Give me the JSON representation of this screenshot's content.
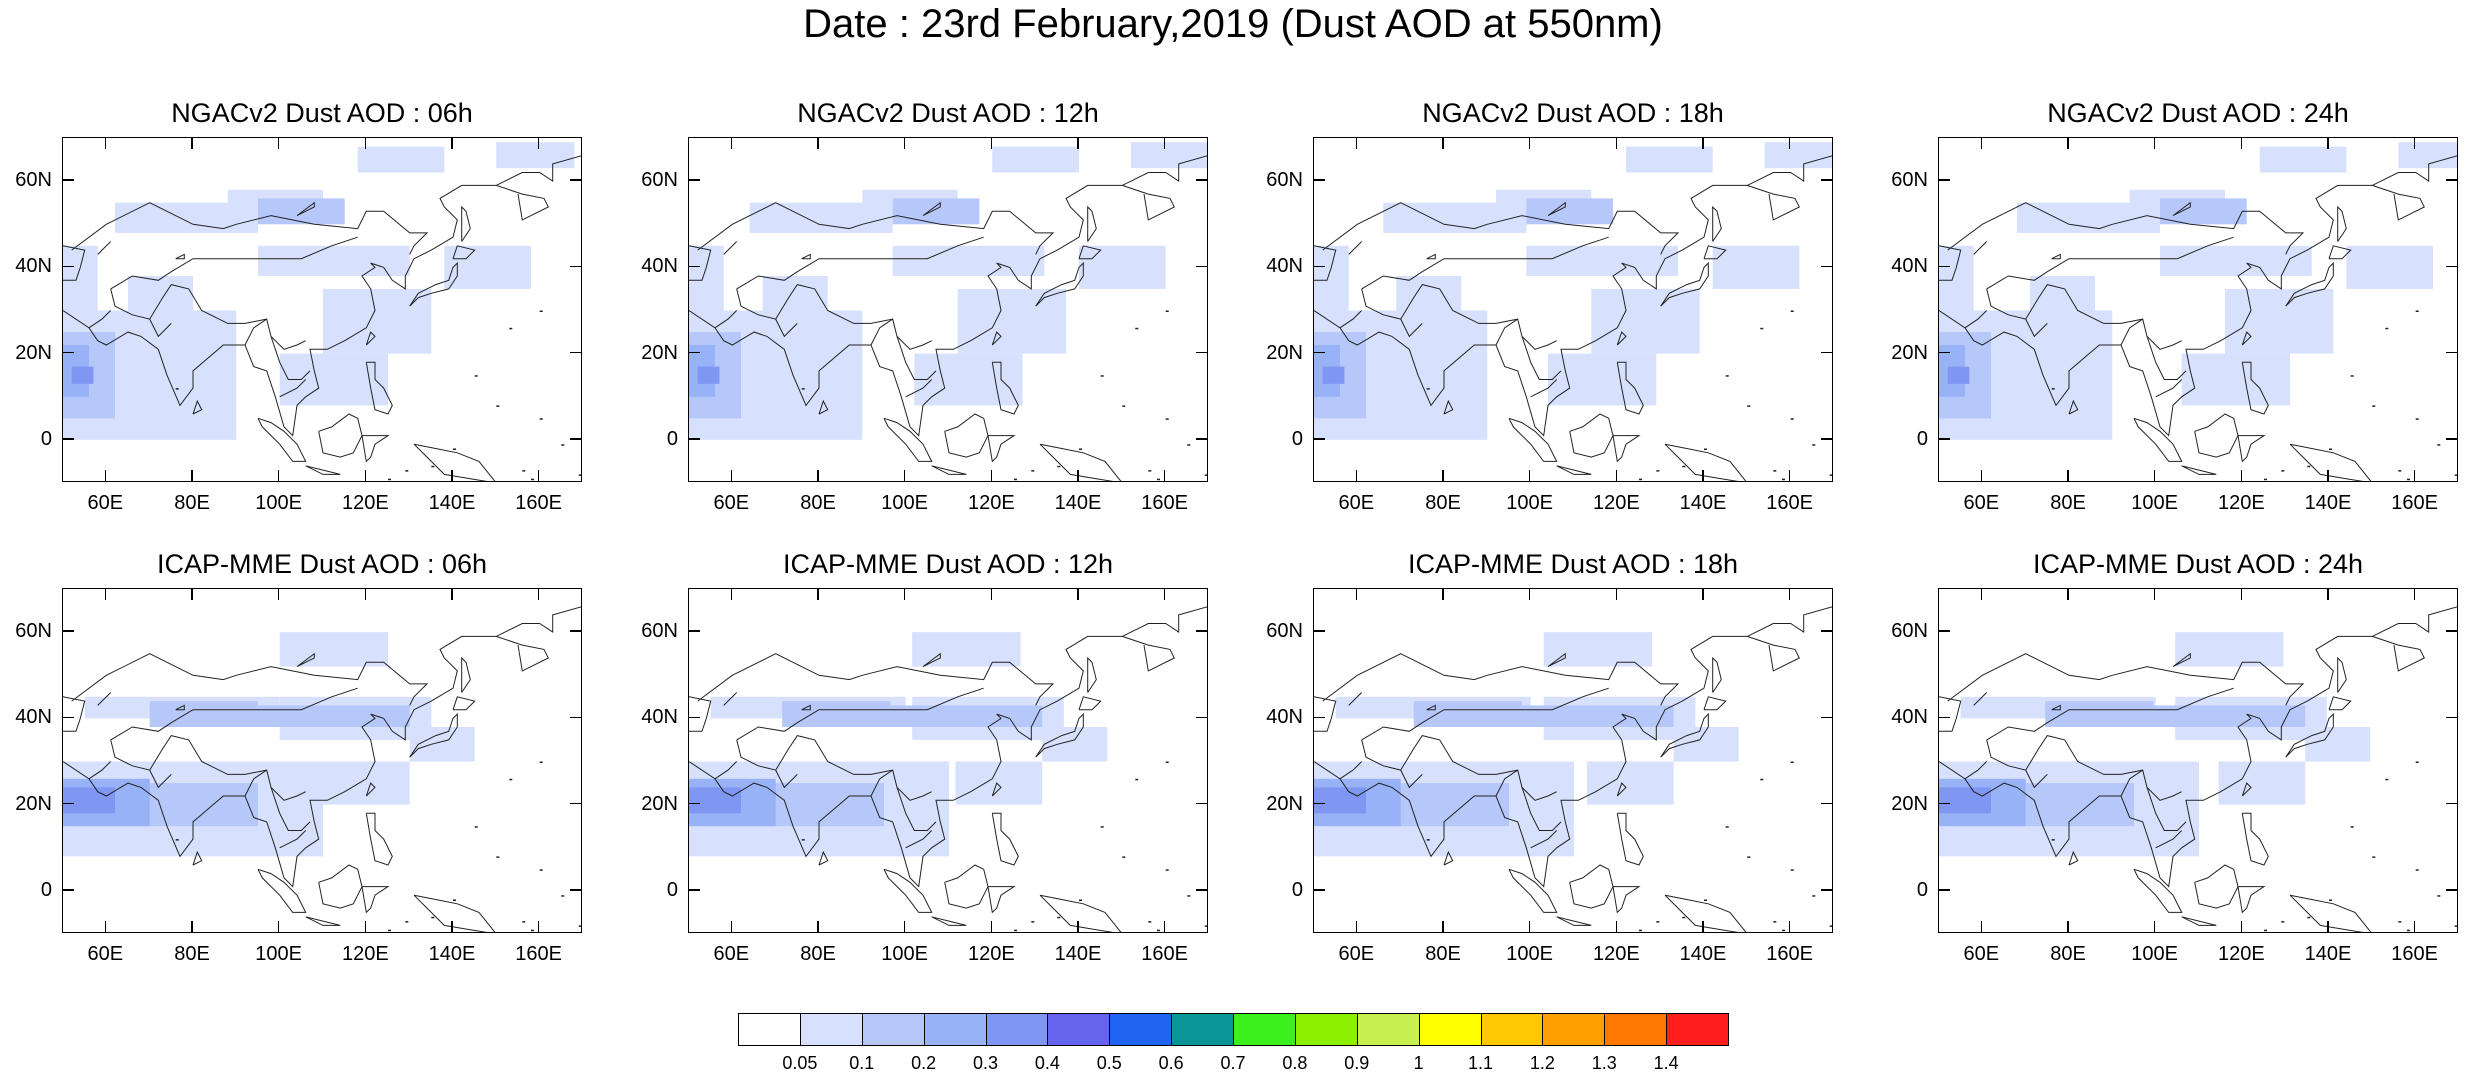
{
  "title": "Date : 23rd February,2019 (Dust AOD at 550nm)",
  "panels": [
    {
      "title": "NGACv2 Dust AOD : 06h"
    },
    {
      "title": "NGACv2 Dust AOD : 12h"
    },
    {
      "title": "NGACv2 Dust AOD : 18h"
    },
    {
      "title": "NGACv2 Dust AOD : 24h"
    },
    {
      "title": "ICAP-MME Dust AOD : 06h"
    },
    {
      "title": "ICAP-MME Dust AOD : 12h"
    },
    {
      "title": "ICAP-MME Dust AOD : 18h"
    },
    {
      "title": "ICAP-MME Dust AOD : 24h"
    }
  ],
  "map": {
    "lon_range": [
      50,
      170
    ],
    "lat_range": [
      -10,
      70
    ],
    "lon_ticks": [
      "60E",
      "80E",
      "100E",
      "120E",
      "140E",
      "160E"
    ],
    "lat_ticks": [
      "60N",
      "40N",
      "20N",
      "0"
    ]
  },
  "colorbar": {
    "labels": [
      "0.05",
      "0.1",
      "0.2",
      "0.3",
      "0.4",
      "0.5",
      "0.6",
      "0.7",
      "0.8",
      "0.9",
      "1",
      "1.1",
      "1.2",
      "1.3",
      "1.4"
    ],
    "colors": [
      "#ffffff",
      "#d7e1fd",
      "#b6c8fa",
      "#98b2f7",
      "#7f97f2",
      "#6464ee",
      "#1f64f2",
      "#0a9696",
      "#3cf01e",
      "#8cf000",
      "#c8f050",
      "#ffff00",
      "#ffc800",
      "#ffa000",
      "#ff7800",
      "#ff1e1e"
    ]
  }
}
